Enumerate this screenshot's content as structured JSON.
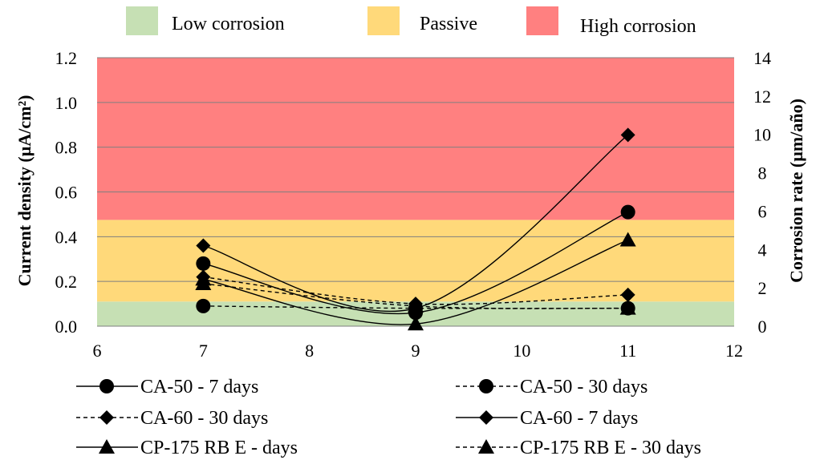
{
  "chart_data": {
    "type": "line",
    "title": "",
    "xlabel": "",
    "ylabel": "Current density  (µA/cm²)",
    "y2label": "Corrosion rate (µm/año)",
    "xlim": [
      6,
      12
    ],
    "ylim": [
      0,
      1.2
    ],
    "y2lim": [
      0,
      14
    ],
    "x_ticks": [
      "6",
      "7",
      "8",
      "9",
      "10",
      "11",
      "12"
    ],
    "y_ticks": [
      "0.0",
      "0.2",
      "0.4",
      "0.6",
      "0.8",
      "1.0",
      "1.2"
    ],
    "y2_ticks": [
      "0",
      "2",
      "4",
      "6",
      "8",
      "10",
      "12",
      "14"
    ],
    "grid": true,
    "bands": [
      {
        "label": "Low corrosion",
        "from": 0,
        "to": 0.11,
        "color": "#c6e0b4"
      },
      {
        "label": "Passive",
        "from": 0.11,
        "to": 0.475,
        "color": "#ffd97a"
      },
      {
        "label": "High corrosion",
        "from": 0.475,
        "to": 1.2,
        "color": "#ff8080"
      }
    ],
    "series": [
      {
        "name": "CA-50 - 7 days",
        "marker": "circle",
        "dashed": false,
        "x": [
          7,
          9,
          11
        ],
        "y": [
          0.28,
          0.06,
          0.51
        ]
      },
      {
        "name": "CA-50 - 30 days",
        "marker": "circle",
        "dashed": true,
        "x": [
          7,
          9,
          11
        ],
        "y": [
          0.09,
          0.08,
          0.08
        ]
      },
      {
        "name": "CA-60 - 30 days",
        "marker": "diamond",
        "dashed": true,
        "x": [
          7,
          9,
          11
        ],
        "y": [
          0.22,
          0.1,
          0.14
        ]
      },
      {
        "name": "CA-60 - 7 days",
        "marker": "diamond",
        "dashed": false,
        "x": [
          7,
          9,
          11
        ],
        "y": [
          0.36,
          0.08,
          0.855
        ]
      },
      {
        "name": "CP-175 RB E - days",
        "marker": "triangle",
        "dashed": false,
        "x": [
          7,
          9,
          11
        ],
        "y": [
          0.21,
          0.01,
          0.385
        ]
      },
      {
        "name": "CP-175 RB E - 30 days",
        "marker": "triangle",
        "dashed": true,
        "x": [
          7,
          9,
          11
        ],
        "y": [
          0.19,
          0.09,
          0.08
        ]
      }
    ],
    "legend_position": "bottom"
  }
}
